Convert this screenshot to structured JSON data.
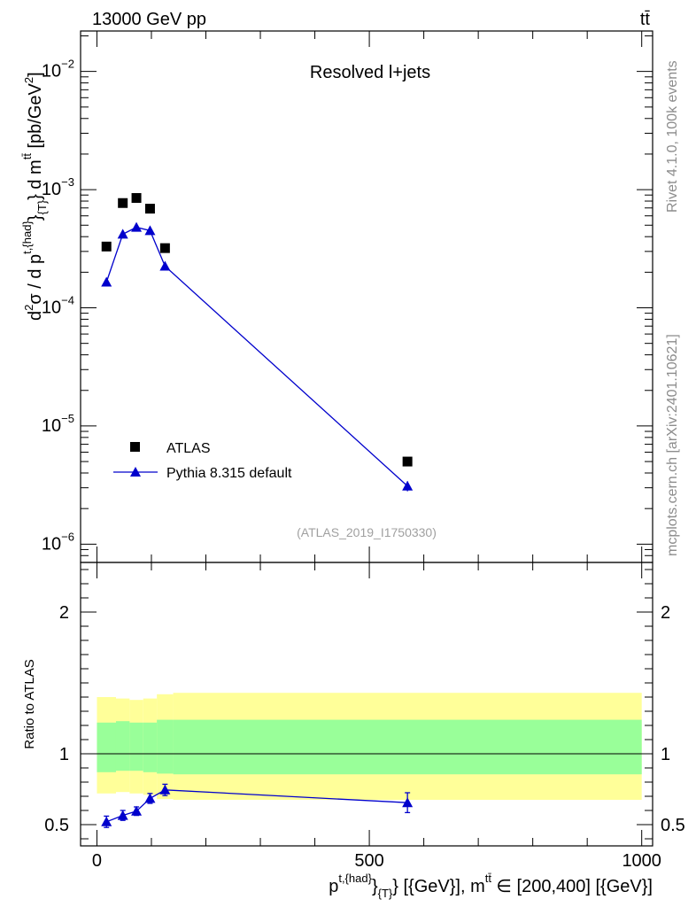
{
  "header": {
    "energy_label": "13000 GeV pp",
    "process_label": "tt̄"
  },
  "side_text": {
    "rivet": "Rivet 4.1.0,  100k events",
    "mcplots": "mcplots.cern.ch [arXiv:2401.10621]"
  },
  "chart_data": [
    {
      "type": "scatter",
      "panel": "main",
      "title": "Resolved l+jets",
      "analysis_tag": "(ATLAS_2019_I1750330)",
      "ylabel": {
        "d2": "d",
        "d2_exp": "2",
        "sigma_d": "σ / d p",
        "p_sup": "t,{had}",
        "p_sub": "{T}",
        "brace": "}",
        "dm": " d m",
        "m_sup": "tt̄",
        "units": " [pb/GeV",
        "units_exp": "2",
        "units_close": "]"
      },
      "yscale": "log",
      "ylim": [
        7e-07,
        0.022
      ],
      "xlim": [
        -30,
        1020
      ],
      "ytick_labels": [
        {
          "base": "10",
          "exp": "−6",
          "value": 1e-06
        },
        {
          "base": "10",
          "exp": "−5",
          "value": 1e-05
        },
        {
          "base": "10",
          "exp": "−4",
          "value": 0.0001
        },
        {
          "base": "10",
          "exp": "−3",
          "value": 0.001
        },
        {
          "base": "10",
          "exp": "−2",
          "value": 0.01
        }
      ],
      "legend": [
        {
          "name": "ATLAS",
          "marker": "square",
          "color": "#000000"
        },
        {
          "name": "Pythia 8.315 default",
          "marker": "triangle",
          "color": "#0000cc"
        }
      ],
      "series": [
        {
          "name": "ATLAS",
          "x": [
            17.5,
            47.5,
            72.5,
            97.5,
            125,
            570
          ],
          "y": [
            0.00033,
            0.00077,
            0.00085,
            0.00069,
            0.00032,
            5e-06
          ]
        },
        {
          "name": "Pythia 8.315 default",
          "x": [
            17.5,
            47.5,
            72.5,
            97.5,
            125,
            570
          ],
          "y": [
            0.000165,
            0.00042,
            0.00048,
            0.00045,
            0.000225,
            3.1e-06
          ],
          "yerr": [
            5e-06,
            1e-05,
            1e-05,
            1e-05,
            6e-06,
            3e-07
          ]
        }
      ]
    },
    {
      "type": "line",
      "panel": "ratio",
      "ylabel": "Ratio to ATLAS",
      "ylim": [
        0.35,
        2.35
      ],
      "xlim": [
        -30,
        1020
      ],
      "xlabel": {
        "p": "p",
        "p_sup": "t,{had}",
        "brace": "}",
        "p_sub": "{T}",
        "mid": " [{GeV}], m",
        "m_sup": "tt̄",
        "range": " ∈ [200,400] [{GeV}]"
      },
      "xticks": [
        0,
        500,
        1000
      ],
      "xtick_labels": [
        "0",
        "500",
        "1000"
      ],
      "yticks": [
        0.5,
        1,
        2
      ],
      "ytick_labels": [
        "0.5",
        "1",
        "2"
      ],
      "reference_line": 1,
      "bands": {
        "edges": [
          0,
          35,
          60,
          85,
          110,
          140,
          1000
        ],
        "inner_lo": [
          0.87,
          0.88,
          0.88,
          0.87,
          0.86,
          0.855
        ],
        "inner_hi": [
          1.22,
          1.23,
          1.22,
          1.22,
          1.24,
          1.24
        ],
        "outer_lo": [
          0.72,
          0.73,
          0.72,
          0.71,
          0.68,
          0.675
        ],
        "outer_hi": [
          1.4,
          1.39,
          1.38,
          1.39,
          1.42,
          1.43
        ],
        "inner_color": "#99ff99",
        "outer_color": "#ffff99"
      },
      "series": [
        {
          "name": "Pythia 8.315 default",
          "color": "#0000cc",
          "x": [
            17.5,
            47.5,
            72.5,
            97.5,
            125,
            570
          ],
          "y": [
            0.52,
            0.565,
            0.595,
            0.685,
            0.745,
            0.655
          ],
          "yerr": [
            0.04,
            0.035,
            0.03,
            0.035,
            0.04,
            0.07
          ]
        }
      ]
    }
  ]
}
